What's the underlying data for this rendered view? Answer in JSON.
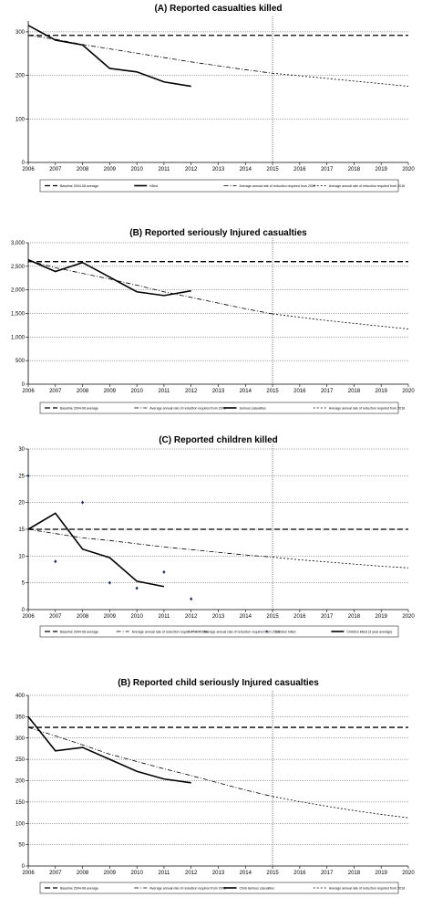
{
  "chart_data": [
    {
      "type": "line",
      "title": "(A) Reported casualties killed",
      "x": [
        2006,
        2007,
        2008,
        2009,
        2010,
        2011,
        2012,
        2013,
        2014,
        2015,
        2016,
        2017,
        2018,
        2019,
        2020
      ],
      "xlim": [
        2006,
        2020
      ],
      "ylim": [
        0,
        325
      ],
      "yticks": [
        0,
        100,
        200,
        300
      ],
      "ytick_labels": [
        "0",
        "100",
        "200",
        "300"
      ],
      "vline": 2015,
      "grid": true,
      "legend_position": "bottom",
      "series": [
        {
          "name": "Baseline 2004-08 average",
          "style": "long-dash",
          "x": [
            2006,
            2020
          ],
          "values": [
            292,
            292
          ]
        },
        {
          "name": "Killed",
          "style": "solid",
          "x": [
            2006,
            2007,
            2008,
            2009,
            2010,
            2011,
            2012
          ],
          "values": [
            315,
            281,
            270,
            216,
            208,
            185,
            175
          ]
        },
        {
          "name": "Average annual rate of reduction required from 2009",
          "style": "dash-dot",
          "x": [
            2006,
            2007,
            2008,
            2009,
            2010,
            2011,
            2012,
            2013,
            2014,
            2015
          ],
          "values": [
            292,
            283,
            271,
            261,
            251,
            241,
            231,
            222,
            213,
            205
          ]
        },
        {
          "name": "Average annual rate of reduction required from 2016",
          "style": "short-dash",
          "x": [
            2015,
            2016,
            2017,
            2018,
            2019,
            2020
          ],
          "values": [
            205,
            199,
            193,
            187,
            181,
            175
          ]
        }
      ]
    },
    {
      "type": "line",
      "title": "(B) Reported seriously Injured casualties",
      "x": [
        2006,
        2007,
        2008,
        2009,
        2010,
        2011,
        2012,
        2013,
        2014,
        2015,
        2016,
        2017,
        2018,
        2019,
        2020
      ],
      "xlim": [
        2006,
        2020
      ],
      "ylim": [
        0,
        3000
      ],
      "yticks": [
        0,
        500,
        1000,
        1500,
        2000,
        2500,
        3000
      ],
      "ytick_labels": [
        "0",
        "500",
        "1,000",
        "1,500",
        "2,000",
        "2,500",
        "3,000"
      ],
      "vline": 2015,
      "grid": true,
      "legend_position": "bottom",
      "series": [
        {
          "name": "Baseline 2004-08 average",
          "style": "long-dash",
          "x": [
            2006,
            2020
          ],
          "values": [
            2600,
            2600
          ]
        },
        {
          "name": "Average annual rate of reduction required from 2006",
          "style": "dash-dot",
          "x": [
            2006,
            2007,
            2008,
            2009,
            2010,
            2011,
            2012,
            2013,
            2014,
            2015
          ],
          "values": [
            2620,
            2470,
            2350,
            2230,
            2100,
            1960,
            1840,
            1720,
            1600,
            1490
          ]
        },
        {
          "name": "Serious casualties",
          "style": "solid",
          "x": [
            2006,
            2007,
            2008,
            2009,
            2010,
            2011,
            2012
          ],
          "values": [
            2640,
            2390,
            2580,
            2270,
            1960,
            1880,
            1980
          ]
        },
        {
          "name": "Average annual rate of reduction required from 2016",
          "style": "short-dash",
          "x": [
            2015,
            2016,
            2017,
            2018,
            2019,
            2020
          ],
          "values": [
            1490,
            1420,
            1350,
            1290,
            1230,
            1170
          ]
        }
      ]
    },
    {
      "type": "line",
      "title": "(C) Reported children killed",
      "x": [
        2006,
        2007,
        2008,
        2009,
        2010,
        2011,
        2012,
        2013,
        2014,
        2015,
        2016,
        2017,
        2018,
        2019,
        2020
      ],
      "xlim": [
        2006,
        2020
      ],
      "ylim": [
        0,
        30
      ],
      "yticks": [
        0,
        5,
        10,
        15,
        20,
        25,
        30
      ],
      "ytick_labels": [
        "0",
        "5",
        "10",
        "15",
        "20",
        "25",
        "30"
      ],
      "vline": 2015,
      "grid": true,
      "legend_position": "bottom",
      "series": [
        {
          "name": "Baseline 2004-08 average",
          "style": "long-dash",
          "x": [
            2006,
            2020
          ],
          "values": [
            15,
            15
          ]
        },
        {
          "name": "Average annual rate of reduction required from 2006",
          "style": "dash-dot",
          "x": [
            2006,
            2007,
            2008,
            2009,
            2010,
            2011,
            2012,
            2013,
            2014,
            2015
          ],
          "values": [
            15.0,
            14.2,
            13.4,
            12.9,
            12.3,
            11.7,
            11.2,
            10.7,
            10.2,
            9.8
          ]
        },
        {
          "name": "Average annual rate of reduction required from 2016",
          "style": "short-dash",
          "x": [
            2015,
            2016,
            2017,
            2018,
            2019,
            2020
          ],
          "values": [
            9.8,
            9.3,
            8.9,
            8.5,
            8.1,
            7.8
          ]
        },
        {
          "name": "Children killed",
          "style": "markers",
          "x": [
            2006,
            2007,
            2008,
            2009,
            2010,
            2011,
            2012
          ],
          "values": [
            25,
            9,
            20,
            5,
            4,
            7,
            2
          ]
        },
        {
          "name": "Children killed (3 year average)",
          "style": "solid",
          "x": [
            2006,
            2007,
            2008,
            2009,
            2010,
            2011
          ],
          "values": [
            15,
            18,
            11.3,
            9.7,
            5.3,
            4.3
          ]
        }
      ]
    },
    {
      "type": "line",
      "title": "(B) Reported child seriously Injured casualties",
      "x": [
        2006,
        2007,
        2008,
        2009,
        2010,
        2011,
        2012,
        2013,
        2014,
        2015,
        2016,
        2017,
        2018,
        2019,
        2020
      ],
      "xlim": [
        2006,
        2020
      ],
      "ylim": [
        0,
        400
      ],
      "yticks": [
        0,
        50,
        100,
        150,
        200,
        250,
        300,
        350,
        400
      ],
      "ytick_labels": [
        "0",
        "50",
        "100",
        "150",
        "200",
        "250",
        "300",
        "350",
        "400"
      ],
      "vline": 2015,
      "grid": true,
      "legend_position": "bottom",
      "series": [
        {
          "name": "Baseline 2004-08 average",
          "style": "long-dash",
          "x": [
            2006,
            2020
          ],
          "values": [
            325,
            325
          ]
        },
        {
          "name": "Average annual rate of reduction required from 2006",
          "style": "dash-dot",
          "x": [
            2006,
            2007,
            2008,
            2009,
            2010,
            2011,
            2012,
            2013,
            2014,
            2015
          ],
          "values": [
            325,
            305,
            284,
            262,
            245,
            228,
            212,
            195,
            178,
            163
          ]
        },
        {
          "name": "Child Serious casualties",
          "style": "solid",
          "x": [
            2006,
            2007,
            2008,
            2009,
            2010,
            2011,
            2012
          ],
          "values": [
            350,
            270,
            278,
            250,
            222,
            204,
            195
          ]
        },
        {
          "name": "Average annual rate of reduction required from 2016",
          "style": "short-dash",
          "x": [
            2015,
            2016,
            2017,
            2018,
            2019,
            2020
          ],
          "values": [
            163,
            151,
            140,
            130,
            121,
            113
          ]
        }
      ]
    }
  ]
}
